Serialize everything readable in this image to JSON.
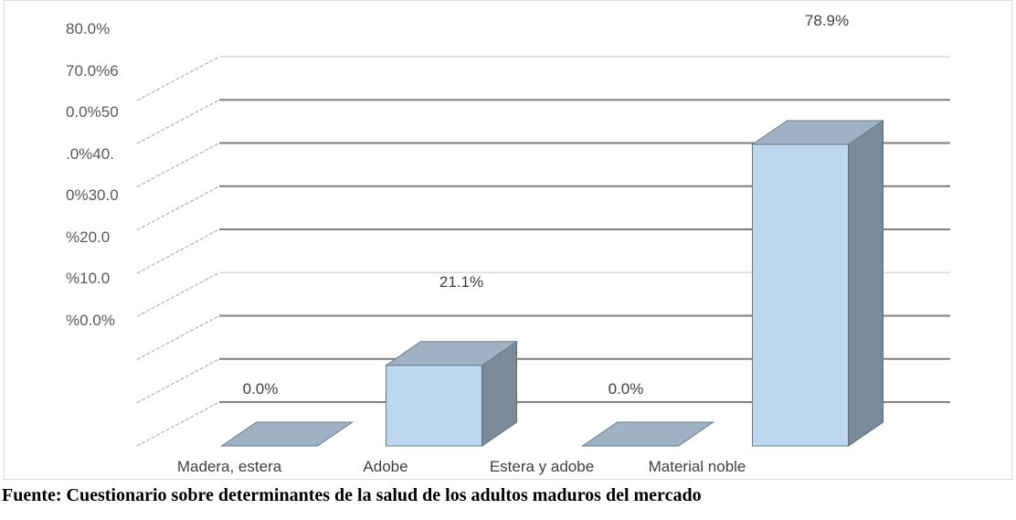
{
  "chart_data": {
    "type": "bar",
    "title": "",
    "xlabel": "",
    "ylabel": "",
    "categories": [
      "Madera, estera",
      "Adobe",
      "Estera y adobe",
      "Material noble"
    ],
    "values": [
      0.0,
      21.1,
      0.0,
      78.9
    ],
    "data_labels": [
      "0.0%",
      "21.1%",
      "0.0%",
      "78.9%"
    ],
    "ylim": [
      0,
      80
    ],
    "y_tick_labels": [
      "80.0%",
      "70.0%6",
      "0.0%50",
      ".0%40.",
      "0%30.0",
      "%20.0",
      "%10.0",
      "%0.0%"
    ],
    "grid": true,
    "legend": "none",
    "colors": {
      "bar_front": "#bdd7ee",
      "bar_side": "#7a8a99",
      "bar_top": "#9fb2c4",
      "gridline": "#7f7f7f"
    }
  },
  "footer": {
    "source_text": "Fuente: Cuestionario sobre determinantes de la salud de los adultos maduros del mercado"
  }
}
